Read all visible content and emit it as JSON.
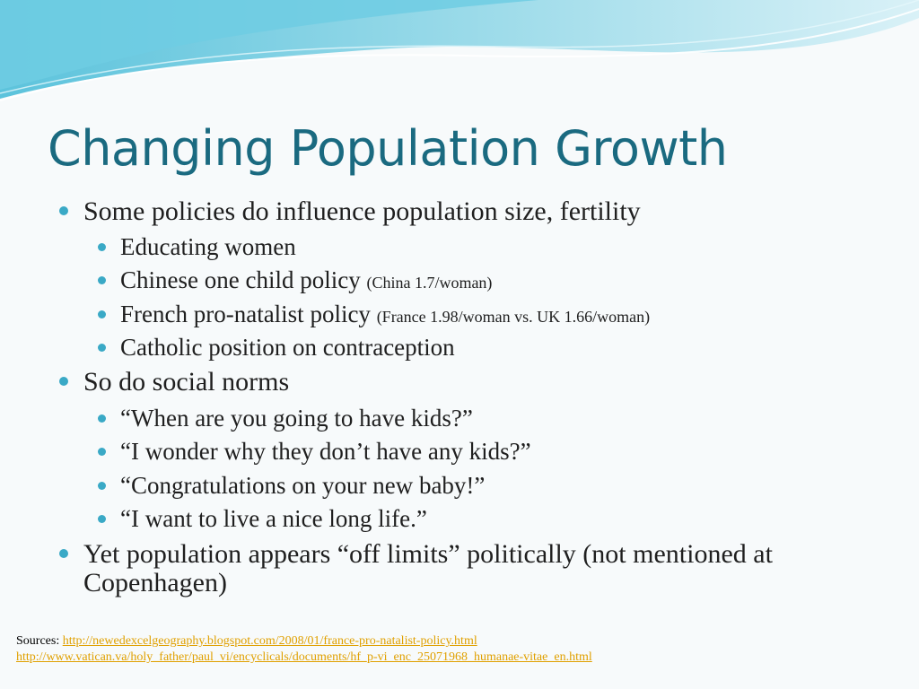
{
  "slide": {
    "title": "Changing Population Growth",
    "bullets": [
      {
        "text": "Some policies do influence population size, fertility"
      },
      {
        "text": "Educating women"
      },
      {
        "text": "Chinese one child policy ",
        "note": "(China 1.7/woman)"
      },
      {
        "text": "French pro-natalist policy ",
        "note": "(France 1.98/woman vs.  UK 1.66/woman)"
      },
      {
        "text": "Catholic position on contraception"
      },
      {
        "text": "So do social norms"
      },
      {
        "text": "“When are you going to have kids?”"
      },
      {
        "text": "“I wonder why they don’t have any kids?”"
      },
      {
        "text": "“Congratulations on your new baby!”"
      },
      {
        "text": "“I want to live a nice long life.”"
      },
      {
        "text": "Yet population appears “off limits” politically (not mentioned at Copenhagen)"
      }
    ],
    "sources": {
      "label": "Sources: ",
      "link1": "http://newedexcelgeography.blogspot.com/2008/01/france-pro-natalist-policy.html",
      "link2": "http://www.vatican.va/holy_father/paul_vi/encyclicals/documents/hf_p-vi_enc_25071968_humanae-vitae_en.html"
    }
  },
  "theme": {
    "title_color": "#1a6a80",
    "bullet_color": "#3aa9c6",
    "link_color": "#e0a000",
    "wave_color": "#5cc3dc"
  }
}
